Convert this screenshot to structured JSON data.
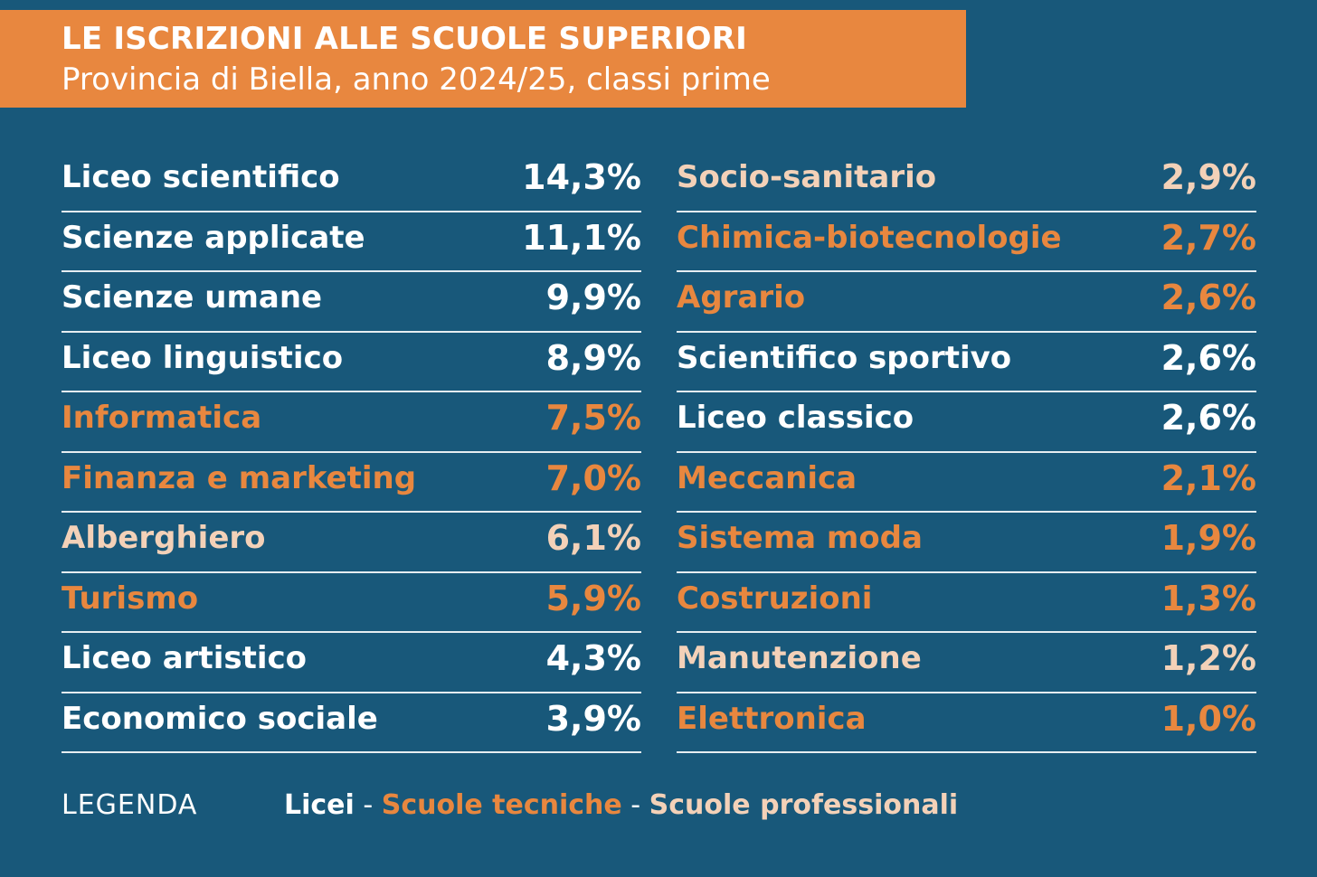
{
  "header": {
    "title": "LE ISCRIZIONI ALLE SCUOLE SUPERIORI",
    "subtitle": "Provincia di Biella, anno 2024/25, classi prime"
  },
  "colors": {
    "background": "#18587a",
    "header": "#e8873f",
    "licei": "#ffffff",
    "tecniche": "#e8873f",
    "professionali": "#f3d1b8"
  },
  "chart_data": {
    "type": "table",
    "title": "LE ISCRIZIONI ALLE SCUOLE SUPERIORI",
    "subtitle": "Provincia di Biella, anno 2024/25, classi prime",
    "columns": [
      [
        {
          "label": "Liceo scientifico",
          "value": "14,3%",
          "category": "liceo"
        },
        {
          "label": "Scienze applicate",
          "value": "11,1%",
          "category": "liceo"
        },
        {
          "label": "Scienze umane",
          "value": "9,9%",
          "category": "liceo"
        },
        {
          "label": "Liceo linguistico",
          "value": "8,9%",
          "category": "liceo"
        },
        {
          "label": "Informatica",
          "value": "7,5%",
          "category": "tecnica"
        },
        {
          "label": "Finanza e marketing",
          "value": "7,0%",
          "category": "tecnica"
        },
        {
          "label": "Alberghiero",
          "value": "6,1%",
          "category": "professionale"
        },
        {
          "label": "Turismo",
          "value": "5,9%",
          "category": "tecnica"
        },
        {
          "label": "Liceo artistico",
          "value": "4,3%",
          "category": "liceo"
        },
        {
          "label": "Economico sociale",
          "value": "3,9%",
          "category": "liceo"
        }
      ],
      [
        {
          "label": "Socio-sanitario",
          "value": "2,9%",
          "category": "professionale"
        },
        {
          "label": "Chimica-biotecnologie",
          "value": "2,7%",
          "category": "tecnica"
        },
        {
          "label": "Agrario",
          "value": "2,6%",
          "category": "tecnica"
        },
        {
          "label": "Scientifico sportivo",
          "value": "2,6%",
          "category": "liceo"
        },
        {
          "label": "Liceo classico",
          "value": "2,6%",
          "category": "liceo"
        },
        {
          "label": "Meccanica",
          "value": "2,1%",
          "category": "tecnica"
        },
        {
          "label": "Sistema moda",
          "value": "1,9%",
          "category": "tecnica"
        },
        {
          "label": "Costruzioni",
          "value": "1,3%",
          "category": "tecnica"
        },
        {
          "label": "Manutenzione",
          "value": "1,2%",
          "category": "professionale"
        },
        {
          "label": "Elettronica",
          "value": "1,0%",
          "category": "tecnica"
        }
      ]
    ]
  },
  "legend": {
    "title": "LEGENDA",
    "licei": "Licei",
    "tecniche": "Scuole tecniche",
    "professionali": "Scuole professionali",
    "separator": " - "
  }
}
